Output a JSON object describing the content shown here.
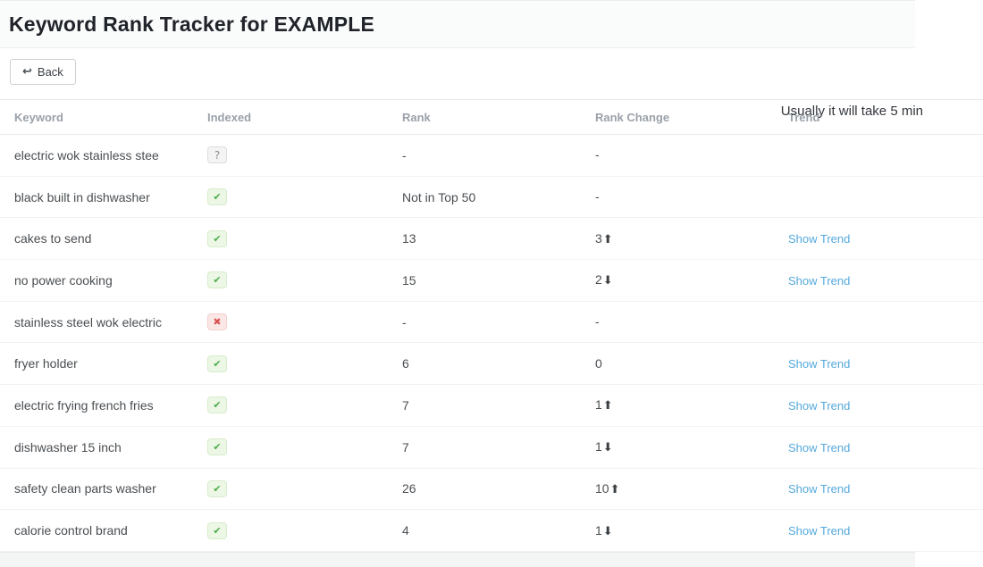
{
  "header": {
    "title": "Keyword Rank Tracker for EXAMPLE",
    "info_text": "Usually it will take 5 min"
  },
  "toolbar": {
    "back_label": "Back",
    "back_icon": "↩"
  },
  "table": {
    "columns": [
      "Keyword",
      "Indexed",
      "Rank",
      "Rank Change",
      "Trend"
    ],
    "rows": [
      {
        "keyword": "electric wok stainless stee",
        "indexed_class": "unknown",
        "indexed_glyph": "?",
        "rank": "-",
        "change": "-",
        "arrow": "",
        "trend_label": ""
      },
      {
        "keyword": "black built in dishwasher",
        "indexed_class": "ok",
        "indexed_glyph": "✔",
        "rank": "Not in Top 50",
        "change": "-",
        "arrow": "",
        "trend_label": ""
      },
      {
        "keyword": "cakes to send",
        "indexed_class": "ok",
        "indexed_glyph": "✔",
        "rank": "13",
        "change": "3",
        "arrow": "⬆",
        "trend_label": "Show Trend"
      },
      {
        "keyword": "no power cooking",
        "indexed_class": "ok",
        "indexed_glyph": "✔",
        "rank": "15",
        "change": "2",
        "arrow": "⬇",
        "trend_label": "Show Trend"
      },
      {
        "keyword": "stainless steel wok electric",
        "indexed_class": "no",
        "indexed_glyph": "✖",
        "rank": "-",
        "change": "-",
        "arrow": "",
        "trend_label": ""
      },
      {
        "keyword": "fryer holder",
        "indexed_class": "ok",
        "indexed_glyph": "✔",
        "rank": "6",
        "change": "0",
        "arrow": "",
        "trend_label": "Show Trend"
      },
      {
        "keyword": "electric frying french fries",
        "indexed_class": "ok",
        "indexed_glyph": "✔",
        "rank": "7",
        "change": "1",
        "arrow": "⬆",
        "trend_label": "Show Trend"
      },
      {
        "keyword": "dishwasher 15 inch",
        "indexed_class": "ok",
        "indexed_glyph": "✔",
        "rank": "7",
        "change": "1",
        "arrow": "⬇",
        "trend_label": "Show Trend"
      },
      {
        "keyword": "safety clean parts washer",
        "indexed_class": "ok",
        "indexed_glyph": "✔",
        "rank": "26",
        "change": "10",
        "arrow": "⬆",
        "trend_label": "Show Trend"
      },
      {
        "keyword": "calorie control brand",
        "indexed_class": "ok",
        "indexed_glyph": "✔",
        "rank": "4",
        "change": "1",
        "arrow": "⬇",
        "trend_label": "Show Trend"
      }
    ]
  },
  "colors": {
    "link_blue": "#55a9dc",
    "success_green": "#4cae4c",
    "error_red": "#d9534f",
    "muted_header_gray": "#9aa1a9"
  }
}
